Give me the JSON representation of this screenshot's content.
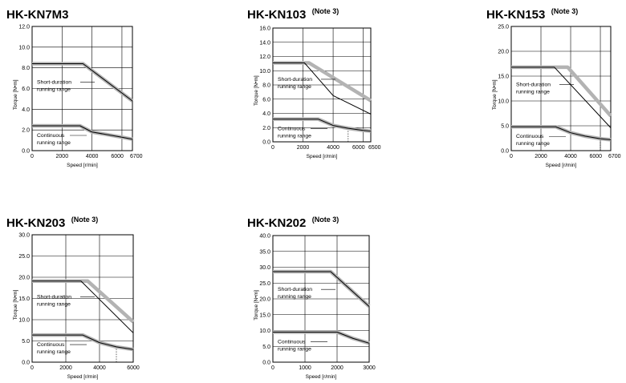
{
  "chart_data": [
    {
      "type": "line",
      "title": "HK-KN7M3",
      "note": "",
      "xlabel": "Speed [r/min]",
      "ylabel": "Torque [N•m]",
      "xlim": [
        0,
        6700
      ],
      "ylim": [
        0,
        12.0
      ],
      "xticks": [
        0,
        2000,
        4000,
        6000,
        6700
      ],
      "xtick_labels": [
        "0",
        "2000",
        "4000",
        "6000",
        "6700"
      ],
      "yticks": [
        0,
        2.0,
        4.0,
        6.0,
        8.0,
        10.0,
        12.0
      ],
      "ytick_labels": [
        "0.0",
        "2.0",
        "4.0",
        "6.0",
        "8.0",
        "10.0",
        "12.0"
      ],
      "grid": true,
      "short_label": [
        "Short-duration",
        "running range"
      ],
      "cont_label": [
        "Continuous",
        "running range"
      ],
      "series": [
        {
          "role": "short-duration-thick",
          "x": [
            0,
            3400,
            6700
          ],
          "y": [
            8.4,
            8.4,
            4.8
          ]
        },
        {
          "role": "short-duration-thin",
          "x": [
            0,
            3400,
            6700
          ],
          "y": [
            8.4,
            8.4,
            4.8
          ]
        },
        {
          "role": "continuous",
          "x": [
            0,
            3200,
            4000,
            6000,
            6700
          ],
          "y": [
            2.4,
            2.4,
            1.8,
            1.3,
            1.1
          ]
        }
      ],
      "dashed_x": []
    },
    {
      "type": "line",
      "title": "HK-KN103",
      "note": "(Note 3)",
      "xlabel": "Speed [r/min]",
      "ylabel": "Torque [N•m]",
      "xlim": [
        0,
        6500
      ],
      "ylim": [
        0,
        16.0
      ],
      "xticks": [
        0,
        2000,
        4000,
        6000,
        6500
      ],
      "xtick_labels": [
        "0",
        "2000",
        "4000",
        "6000",
        "6500"
      ],
      "yticks": [
        0,
        2.0,
        4.0,
        6.0,
        8.0,
        10.0,
        12.0,
        14.0,
        16.0
      ],
      "ytick_labels": [
        "0.0",
        "2.0",
        "4.0",
        "6.0",
        "8.0",
        "10.0",
        "12.0",
        "14.0",
        "16.0"
      ],
      "grid": true,
      "short_label": [
        "Short-duration",
        "running range"
      ],
      "cont_label": [
        "Continuous",
        "running range"
      ],
      "series": [
        {
          "role": "short-duration-thick",
          "x": [
            0,
            2400,
            6500
          ],
          "y": [
            11.1,
            11.1,
            5.8
          ]
        },
        {
          "role": "short-duration-thin",
          "x": [
            0,
            2100,
            4000,
            6500
          ],
          "y": [
            11.1,
            11.1,
            6.5,
            3.9
          ]
        },
        {
          "role": "continuous",
          "x": [
            0,
            3000,
            4000,
            5000,
            6000,
            6500
          ],
          "y": [
            3.2,
            3.2,
            2.3,
            1.9,
            1.6,
            1.5
          ]
        }
      ],
      "dashed_x": [
        5000
      ]
    },
    {
      "type": "line",
      "title": "HK-KN153",
      "note": "(Note 3)",
      "xlabel": "Speed [r/min]",
      "ylabel": "Torque [N•m]",
      "xlim": [
        0,
        6700
      ],
      "ylim": [
        0,
        25.0
      ],
      "xticks": [
        0,
        2000,
        4000,
        6000,
        6700
      ],
      "xtick_labels": [
        "0",
        "2000",
        "4000",
        "6000",
        "6700"
      ],
      "yticks": [
        0,
        5.0,
        10.0,
        15.0,
        20.0,
        25.0
      ],
      "ytick_labels": [
        "0.0",
        "5.0",
        "10.0",
        "15.0",
        "20.0",
        "25.0"
      ],
      "grid": true,
      "short_label": [
        "Short-duration",
        "running range"
      ],
      "cont_label": [
        "Continuous",
        "running range"
      ],
      "series": [
        {
          "role": "short-duration-thick",
          "x": [
            0,
            3800,
            6700
          ],
          "y": [
            16.8,
            16.8,
            7.0
          ]
        },
        {
          "role": "short-duration-thin",
          "x": [
            0,
            2900,
            6700
          ],
          "y": [
            16.8,
            16.8,
            4.6
          ]
        },
        {
          "role": "continuous",
          "x": [
            0,
            3000,
            4000,
            5000,
            6000,
            6700
          ],
          "y": [
            4.8,
            4.8,
            3.6,
            2.9,
            2.4,
            2.2
          ]
        }
      ],
      "dashed_x": [
        6000
      ]
    },
    {
      "type": "line",
      "title": "HK-KN203",
      "note": "(Note 3)",
      "xlabel": "Speed [r/min]",
      "ylabel": "Torque [N•m]",
      "xlim": [
        0,
        6000
      ],
      "ylim": [
        0,
        30.0
      ],
      "xticks": [
        0,
        2000,
        4000,
        6000
      ],
      "xtick_labels": [
        "0",
        "2000",
        "4000",
        "6000"
      ],
      "yticks": [
        0,
        5.0,
        10.0,
        15.0,
        20.0,
        25.0,
        30.0
      ],
      "ytick_labels": [
        "0.0",
        "5.0",
        "10.0",
        "15.0",
        "20.0",
        "25.0",
        "30.0"
      ],
      "grid": true,
      "short_label": [
        "Short-duration",
        "running range"
      ],
      "cont_label": [
        "Continuous",
        "running range"
      ],
      "series": [
        {
          "role": "short-duration-thick",
          "x": [
            0,
            3300,
            6000
          ],
          "y": [
            19.1,
            19.1,
            9.5
          ]
        },
        {
          "role": "short-duration-thin",
          "x": [
            0,
            2900,
            6000
          ],
          "y": [
            19.1,
            19.1,
            6.9
          ]
        },
        {
          "role": "continuous",
          "x": [
            0,
            3000,
            4000,
            5000,
            6000
          ],
          "y": [
            6.4,
            6.4,
            4.6,
            3.6,
            3.0
          ]
        }
      ],
      "dashed_x": [
        5000
      ]
    },
    {
      "type": "line",
      "title": "HK-KN202",
      "note": "(Note 3)",
      "xlabel": "Speed [r/min]",
      "ylabel": "Torque [N•m]",
      "xlim": [
        0,
        3000
      ],
      "ylim": [
        0,
        40.0
      ],
      "xticks": [
        0,
        1000,
        2000,
        3000
      ],
      "xtick_labels": [
        "0",
        "1000",
        "2000",
        "3000"
      ],
      "yticks": [
        0,
        5.0,
        10.0,
        15.0,
        20.0,
        25.0,
        30.0,
        35.0,
        40.0
      ],
      "ytick_labels": [
        "0.0",
        "5.0",
        "10.0",
        "15.0",
        "20.0",
        "25.0",
        "30.0",
        "35.0",
        "40.0"
      ],
      "grid": true,
      "short_label": [
        "Short-duration",
        "running range"
      ],
      "cont_label": [
        "Continuous",
        "running range"
      ],
      "series": [
        {
          "role": "short-duration-thick",
          "x": [
            0,
            1800,
            3000
          ],
          "y": [
            28.6,
            28.6,
            17.6
          ]
        },
        {
          "role": "short-duration-thin",
          "x": [
            0,
            1800,
            3000
          ],
          "y": [
            28.6,
            28.6,
            17.6
          ]
        },
        {
          "role": "continuous",
          "x": [
            0,
            2000,
            2500,
            3000
          ],
          "y": [
            9.5,
            9.5,
            7.5,
            6.0
          ]
        }
      ],
      "dashed_x": [
        3000
      ]
    }
  ]
}
